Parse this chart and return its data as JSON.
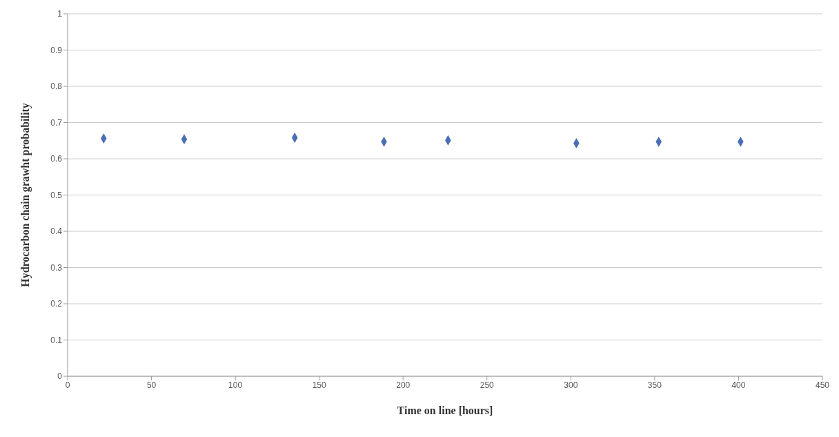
{
  "chart_data": {
    "type": "scatter",
    "xlabel": "Time on line [hours]",
    "ylabel": "Hydrocarbon chain grawht probability",
    "x": [
      21.5,
      69.5,
      135.4,
      188.6,
      226.8,
      303.3,
      352.4,
      401.2
    ],
    "series": [
      {
        "color": "#4a6fb5",
        "values": [
          0.656,
          0.654,
          0.658,
          0.647,
          0.651,
          0.643,
          0.647,
          0.647
        ]
      }
    ],
    "xlim": [
      0,
      450
    ],
    "xticks": [
      0,
      50,
      100,
      150,
      200,
      250,
      300,
      350,
      400,
      450
    ],
    "ylim": [
      0,
      1
    ],
    "yticks": [
      0,
      0.1,
      0.2,
      0.3,
      0.4,
      0.5,
      0.6,
      0.7,
      0.8,
      0.9,
      1
    ],
    "grid": "y",
    "marker": "diamond",
    "legend": false
  }
}
